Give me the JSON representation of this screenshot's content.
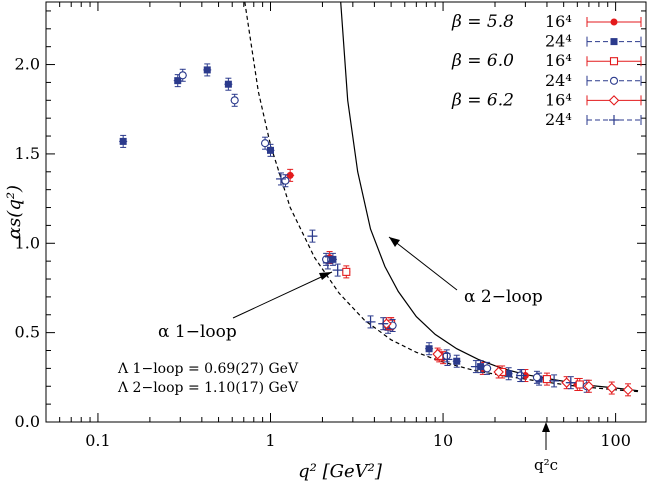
{
  "chart_data": {
    "type": "scatter",
    "xlabel": "q² [GeV²]",
    "ylabel": "αs(q²)",
    "xscale": "log",
    "xlim": [
      0.05,
      150
    ],
    "ylim": [
      0.0,
      2.35
    ],
    "x_ticks": [
      0.1,
      1,
      10,
      100
    ],
    "x_tick_labels": [
      "0.1",
      "1",
      "10",
      "100"
    ],
    "y_ticks": [
      0.0,
      0.5,
      1.0,
      1.5,
      2.0
    ],
    "y_tick_labels": [
      "0.0",
      "0.5",
      "1.0",
      "1.5",
      "2.0"
    ],
    "grid": false,
    "legend_position": "top-right",
    "legend_groups": [
      {
        "beta": "β = 5.8",
        "entries": [
          "16⁴",
          "24⁴"
        ]
      },
      {
        "beta": "β = 6.0",
        "entries": [
          "16⁴",
          "24⁴"
        ]
      },
      {
        "beta": "β = 6.2",
        "entries": [
          "16⁴",
          "24⁴"
        ]
      }
    ],
    "series": [
      {
        "name": "β = 5.8, 16⁴",
        "color": "#e31a1c",
        "marker": "filled-circle",
        "dash": false,
        "points": [
          [
            1.3,
            1.38
          ],
          [
            2.2,
            0.92
          ],
          [
            5.0,
            0.55
          ],
          [
            10.0,
            0.36
          ],
          [
            17.0,
            0.3
          ],
          [
            30.0,
            0.26
          ],
          [
            60.0,
            0.21
          ]
        ]
      },
      {
        "name": "β = 5.8, 24⁴",
        "color": "#2b3a8c",
        "marker": "filled-square",
        "dash": true,
        "points": [
          [
            0.14,
            1.57
          ],
          [
            0.29,
            1.91
          ],
          [
            0.43,
            1.97
          ],
          [
            0.57,
            1.89
          ],
          [
            1.0,
            1.52
          ],
          [
            2.3,
            0.91
          ],
          [
            4.8,
            0.53
          ],
          [
            8.3,
            0.41
          ],
          [
            12.0,
            0.34
          ],
          [
            16.5,
            0.31
          ],
          [
            24.0,
            0.27
          ],
          [
            36.0,
            0.24
          ]
        ]
      },
      {
        "name": "β = 6.0, 16⁴",
        "color": "#e31a1c",
        "marker": "open-square",
        "dash": false,
        "points": [
          [
            2.75,
            0.84
          ],
          [
            5.0,
            0.55
          ],
          [
            9.5,
            0.37
          ],
          [
            22.0,
            0.28
          ],
          [
            40.0,
            0.24
          ],
          [
            62.0,
            0.21
          ]
        ]
      },
      {
        "name": "β = 6.0, 24⁴",
        "color": "#2b3a8c",
        "marker": "open-circle",
        "dash": true,
        "points": [
          [
            0.31,
            1.94
          ],
          [
            0.62,
            1.8
          ],
          [
            0.93,
            1.56
          ],
          [
            1.22,
            1.35
          ],
          [
            2.1,
            0.91
          ],
          [
            5.1,
            0.54
          ],
          [
            10.5,
            0.37
          ],
          [
            18.0,
            0.3
          ],
          [
            28.0,
            0.26
          ],
          [
            35.0,
            0.25
          ],
          [
            68.0,
            0.2
          ]
        ]
      },
      {
        "name": "β = 6.2, 16⁴",
        "color": "#e31a1c",
        "marker": "open-diamond",
        "dash": false,
        "points": [
          [
            4.7,
            0.55
          ],
          [
            9.3,
            0.38
          ],
          [
            21.0,
            0.28
          ],
          [
            52.0,
            0.22
          ],
          [
            70.0,
            0.2
          ],
          [
            95.0,
            0.19
          ],
          [
            118.0,
            0.18
          ]
        ]
      },
      {
        "name": "β = 6.2, 24⁴",
        "color": "#2b3a8c",
        "marker": "plus",
        "dash": true,
        "points": [
          [
            1.15,
            1.36
          ],
          [
            1.75,
            1.04
          ],
          [
            2.15,
            0.89
          ],
          [
            2.45,
            0.85
          ],
          [
            3.8,
            0.56
          ],
          [
            4.5,
            0.55
          ],
          [
            10.6,
            0.35
          ],
          [
            15.5,
            0.31
          ],
          [
            28.5,
            0.26
          ],
          [
            44.0,
            0.23
          ],
          [
            55.0,
            0.22
          ]
        ]
      }
    ],
    "curves": [
      {
        "name": "α 2−loop",
        "style": "solid",
        "points": [
          [
            2.55,
            2.35
          ],
          [
            2.8,
            1.8
          ],
          [
            3.2,
            1.4
          ],
          [
            3.8,
            1.08
          ],
          [
            4.6,
            0.87
          ],
          [
            5.5,
            0.73
          ],
          [
            7.0,
            0.59
          ],
          [
            9.0,
            0.49
          ],
          [
            12.0,
            0.41
          ],
          [
            16.0,
            0.35
          ],
          [
            22.0,
            0.3
          ],
          [
            30.0,
            0.265
          ],
          [
            45.0,
            0.235
          ],
          [
            70.0,
            0.205
          ],
          [
            100.0,
            0.19
          ],
          [
            135.0,
            0.175
          ]
        ]
      },
      {
        "name": "α 1−loop",
        "style": "dashed",
        "points": [
          [
            0.71,
            2.35
          ],
          [
            0.85,
            1.85
          ],
          [
            1.0,
            1.55
          ],
          [
            1.3,
            1.2
          ],
          [
            1.8,
            0.92
          ],
          [
            2.5,
            0.72
          ],
          [
            3.5,
            0.57
          ],
          [
            5.0,
            0.46
          ],
          [
            7.0,
            0.39
          ],
          [
            10.0,
            0.335
          ],
          [
            15.0,
            0.29
          ],
          [
            22.0,
            0.26
          ],
          [
            35.0,
            0.23
          ],
          [
            60.0,
            0.2
          ],
          [
            100.0,
            0.18
          ],
          [
            135.0,
            0.17
          ]
        ]
      }
    ],
    "annotations": {
      "two_loop": "α 2−loop",
      "one_loop": "α 1−loop",
      "lambda_1loop": "Λ 1−loop = 0.69(27) GeV",
      "lambda_2loop": "Λ 2−loop = 1.10(17) GeV",
      "qc": "q²c",
      "qc_value": 30
    }
  }
}
